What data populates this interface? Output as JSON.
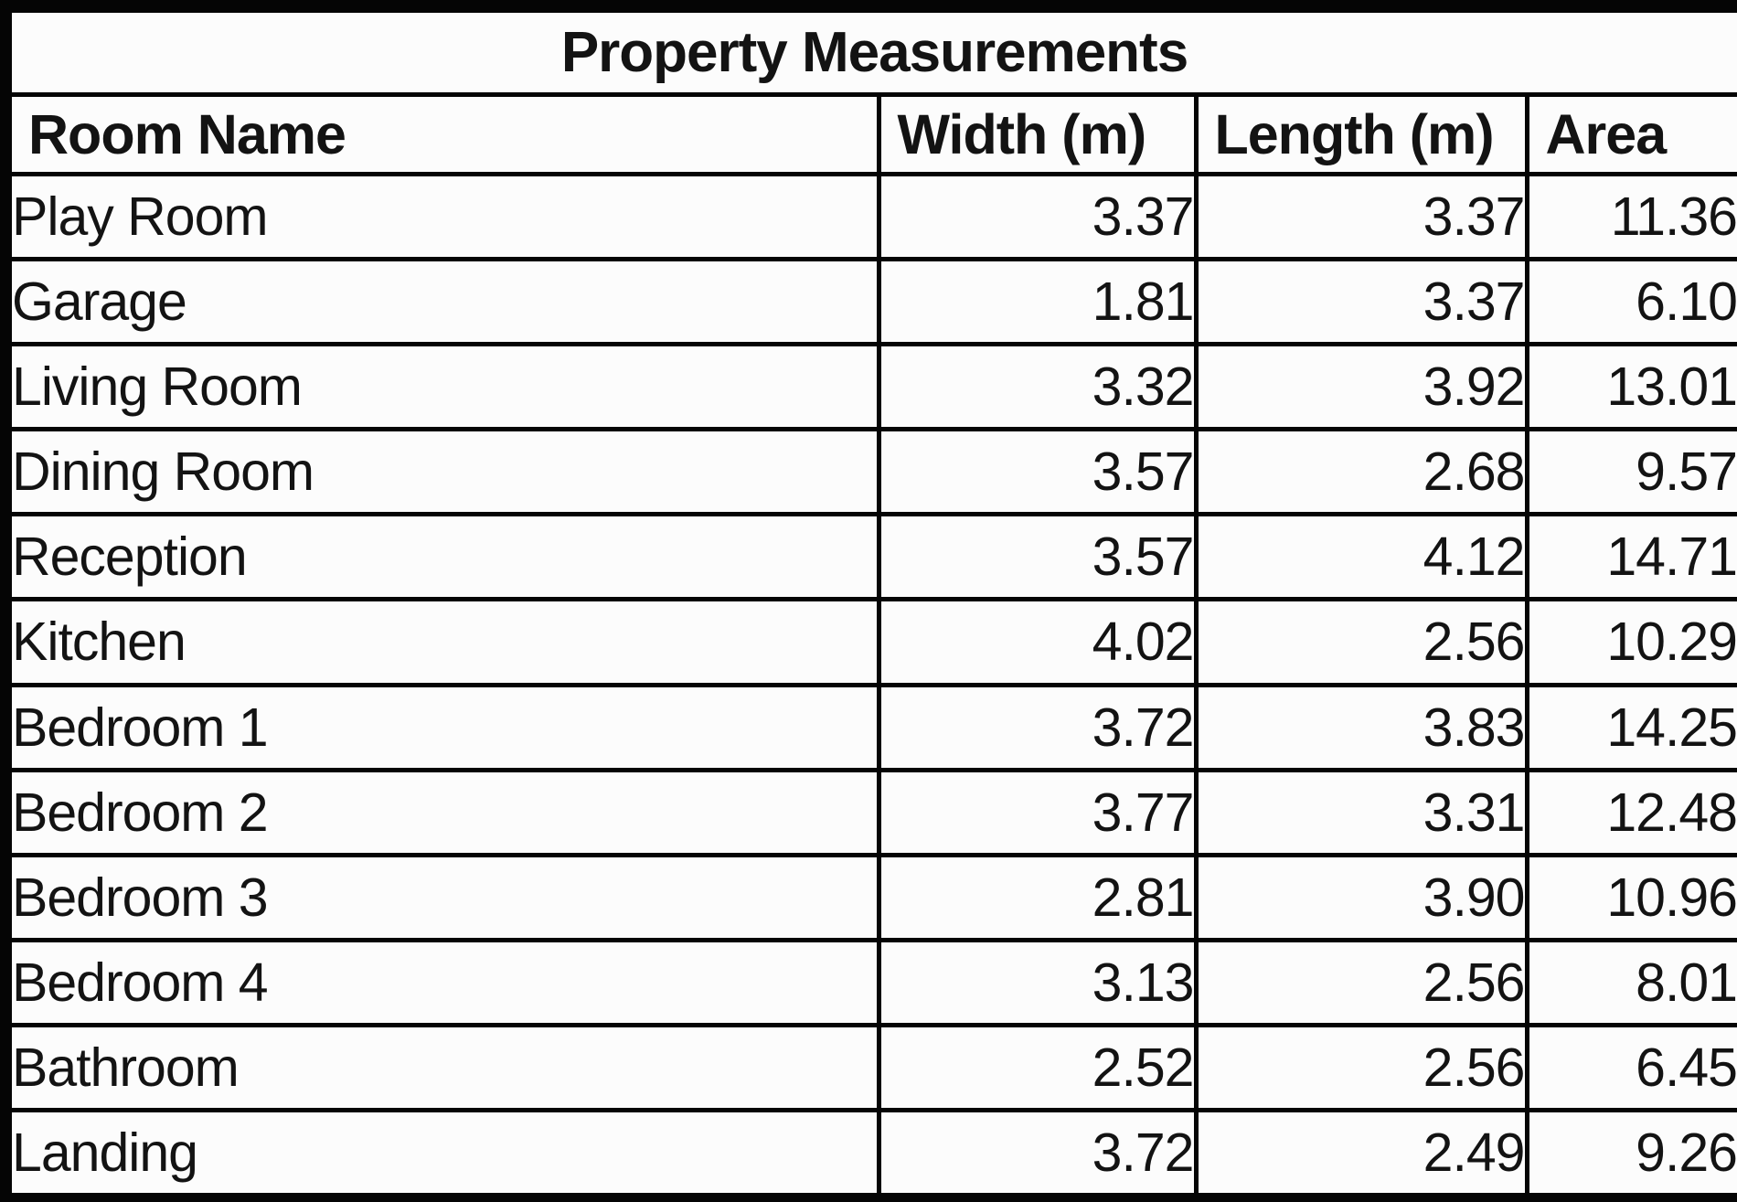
{
  "chart_data": {
    "type": "table",
    "title": "Property Measurements",
    "columns": [
      "Room Name",
      "Width (m)",
      "Length (m)",
      "Area"
    ],
    "rows": [
      {
        "room": "Play Room",
        "width_m": "3.37",
        "length_m": "3.37",
        "area": "11.36"
      },
      {
        "room": "Garage",
        "width_m": "1.81",
        "length_m": "3.37",
        "area": "6.10"
      },
      {
        "room": "Living Room",
        "width_m": "3.32",
        "length_m": "3.92",
        "area": "13.01"
      },
      {
        "room": "Dining Room",
        "width_m": "3.57",
        "length_m": "2.68",
        "area": "9.57"
      },
      {
        "room": "Reception",
        "width_m": "3.57",
        "length_m": "4.12",
        "area": "14.71"
      },
      {
        "room": "Kitchen",
        "width_m": "4.02",
        "length_m": "2.56",
        "area": "10.29"
      },
      {
        "room": "Bedroom 1",
        "width_m": "3.72",
        "length_m": "3.83",
        "area": "14.25"
      },
      {
        "room": "Bedroom 2",
        "width_m": "3.77",
        "length_m": "3.31",
        "area": "12.48"
      },
      {
        "room": "Bedroom 3",
        "width_m": "2.81",
        "length_m": "3.90",
        "area": "10.96"
      },
      {
        "room": "Bedroom 4",
        "width_m": "3.13",
        "length_m": "2.56",
        "area": "8.01"
      },
      {
        "room": "Bathroom",
        "width_m": "2.52",
        "length_m": "2.56",
        "area": "6.45"
      },
      {
        "room": "Landing",
        "width_m": "3.72",
        "length_m": "2.49",
        "area": "9.26"
      }
    ],
    "layout": {
      "grid": "on",
      "header_style": "bold",
      "numbers_alignment": "right"
    }
  },
  "colors": {
    "border": "#050505",
    "background": "#fcfcfc",
    "text": "#131313"
  }
}
